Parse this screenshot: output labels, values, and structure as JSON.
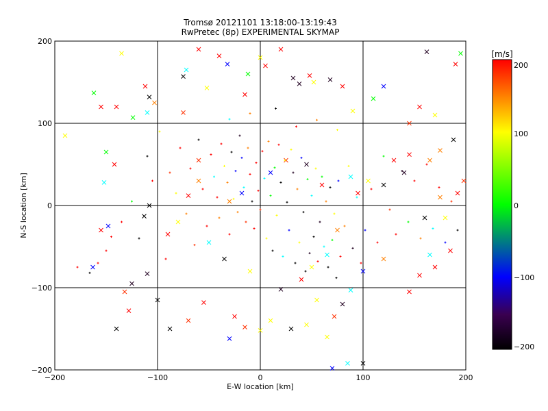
{
  "chart_data": {
    "type": "scatter",
    "title": "Tromsø 20121101 13:18:00-13:19:43",
    "subtitle": "RwPretec (8p) EXPERIMENTAL SKYMAP",
    "xlabel": "E-W location [km]",
    "ylabel": "N-S location [km]",
    "xlim": [
      -200,
      200
    ],
    "ylim": [
      -200,
      200
    ],
    "x_ticks": [
      "−200",
      "−100",
      "0",
      "100",
      "200"
    ],
    "y_ticks": [
      "200",
      "100",
      "0",
      "−100",
      "−200"
    ],
    "grid": true,
    "colorbar": {
      "label": "[m/s]",
      "range": [
        -200,
        200
      ],
      "ticks": [
        "200",
        "100",
        "0",
        "−100",
        "−200"
      ]
    },
    "series": [
      {
        "marker": "x",
        "points": [
          [
            -190,
            85
          ],
          [
            -162,
            137
          ],
          [
            -155,
            120
          ],
          [
            -140,
            120
          ],
          [
            -135,
            185
          ],
          [
            -124,
            107
          ],
          [
            -112,
            145
          ],
          [
            -108,
            132
          ],
          [
            -110,
            113
          ],
          [
            -103,
            125
          ],
          [
            -75,
            113
          ],
          [
            -75,
            157
          ],
          [
            -72,
            165
          ],
          [
            -60,
            190
          ],
          [
            -52,
            143
          ],
          [
            -40,
            182
          ],
          [
            -32,
            172
          ],
          [
            -15,
            135
          ],
          [
            -12,
            160
          ],
          [
            0,
            180
          ],
          [
            5,
            170
          ],
          [
            20,
            190
          ],
          [
            32,
            155
          ],
          [
            38,
            148
          ],
          [
            48,
            158
          ],
          [
            52,
            150
          ],
          [
            68,
            153
          ],
          [
            80,
            145
          ],
          [
            90,
            115
          ],
          [
            110,
            130
          ],
          [
            120,
            145
          ],
          [
            145,
            100
          ],
          [
            155,
            120
          ],
          [
            162,
            187
          ],
          [
            170,
            110
          ],
          [
            190,
            172
          ],
          [
            195,
            185
          ],
          [
            198,
            30
          ],
          [
            192,
            15
          ],
          [
            188,
            80
          ],
          [
            175,
            67
          ],
          [
            165,
            55
          ],
          [
            145,
            62
          ],
          [
            140,
            40
          ],
          [
            130,
            55
          ],
          [
            120,
            25
          ],
          [
            105,
            30
          ],
          [
            95,
            15
          ],
          [
            88,
            35
          ],
          [
            175,
            10
          ],
          [
            160,
            -15
          ],
          [
            165,
            -60
          ],
          [
            170,
            -75
          ],
          [
            185,
            -55
          ],
          [
            180,
            -15
          ],
          [
            155,
            -85
          ],
          [
            145,
            -105
          ],
          [
            120,
            -65
          ],
          [
            100,
            -80
          ],
          [
            88,
            -103
          ],
          [
            80,
            -120
          ],
          [
            72,
            -135
          ],
          [
            65,
            -160
          ],
          [
            55,
            -115
          ],
          [
            45,
            -145
          ],
          [
            30,
            -150
          ],
          [
            10,
            -140
          ],
          [
            0,
            -152
          ],
          [
            -15,
            -148
          ],
          [
            -25,
            -135
          ],
          [
            -30,
            -162
          ],
          [
            -55,
            -118
          ],
          [
            -70,
            -140
          ],
          [
            -88,
            -150
          ],
          [
            -100,
            -115
          ],
          [
            -110,
            -83
          ],
          [
            -125,
            -95
          ],
          [
            -140,
            -150
          ],
          [
            -148,
            -25
          ],
          [
            -152,
            28
          ],
          [
            -150,
            65
          ],
          [
            -128,
            -128
          ],
          [
            -60,
            55
          ],
          [
            -60,
            30
          ],
          [
            -70,
            12
          ],
          [
            -30,
            5
          ],
          [
            -18,
            15
          ],
          [
            10,
            40
          ],
          [
            25,
            55
          ],
          [
            45,
            50
          ],
          [
            60,
            25
          ],
          [
            75,
            -30
          ],
          [
            65,
            -60
          ],
          [
            50,
            -75
          ],
          [
            40,
            -90
          ],
          [
            20,
            -102
          ],
          [
            -10,
            -80
          ],
          [
            -35,
            -65
          ],
          [
            -50,
            -45
          ],
          [
            -80,
            -20
          ],
          [
            -90,
            -35
          ],
          [
            -108,
            0
          ],
          [
            -113,
            -13
          ],
          [
            -132,
            -105
          ],
          [
            -142,
            50
          ],
          [
            -155,
            -30
          ],
          [
            -163,
            -75
          ],
          [
            70,
            -198
          ],
          [
            85,
            -192
          ],
          [
            100,
            -192
          ]
        ]
      },
      {
        "marker": "+",
        "points": [
          [
            -178,
            -75
          ],
          [
            -166,
            -82
          ],
          [
            -158,
            -70
          ],
          [
            -150,
            -55
          ],
          [
            -145,
            -38
          ],
          [
            -135,
            -20
          ],
          [
            -125,
            5
          ],
          [
            -118,
            -40
          ],
          [
            -110,
            60
          ],
          [
            -105,
            30
          ],
          [
            -98,
            90
          ],
          [
            -92,
            -65
          ],
          [
            -88,
            40
          ],
          [
            -82,
            15
          ],
          [
            -78,
            70
          ],
          [
            -72,
            -10
          ],
          [
            -68,
            45
          ],
          [
            -64,
            -48
          ],
          [
            -60,
            80
          ],
          [
            -56,
            20
          ],
          [
            -52,
            -25
          ],
          [
            -48,
            62
          ],
          [
            -45,
            35
          ],
          [
            -42,
            10
          ],
          [
            -40,
            -15
          ],
          [
            -38,
            75
          ],
          [
            -35,
            48
          ],
          [
            -32,
            28
          ],
          [
            -30,
            -35
          ],
          [
            -28,
            65
          ],
          [
            -26,
            8
          ],
          [
            -24,
            42
          ],
          [
            -22,
            -8
          ],
          [
            -20,
            85
          ],
          [
            -18,
            58
          ],
          [
            -16,
            22
          ],
          [
            -14,
            -20
          ],
          [
            -12,
            70
          ],
          [
            -10,
            38
          ],
          [
            -8,
            5
          ],
          [
            -6,
            -28
          ],
          [
            -4,
            52
          ],
          [
            -2,
            18
          ],
          [
            0,
            -5
          ],
          [
            2,
            66
          ],
          [
            4,
            33
          ],
          [
            6,
            -40
          ],
          [
            8,
            78
          ],
          [
            10,
            12
          ],
          [
            12,
            -55
          ],
          [
            14,
            46
          ],
          [
            16,
            -12
          ],
          [
            18,
            74
          ],
          [
            20,
            28
          ],
          [
            22,
            -62
          ],
          [
            24,
            55
          ],
          [
            26,
            4
          ],
          [
            28,
            -30
          ],
          [
            30,
            68
          ],
          [
            32,
            40
          ],
          [
            34,
            -70
          ],
          [
            36,
            20
          ],
          [
            38,
            -45
          ],
          [
            40,
            58
          ],
          [
            42,
            -8
          ],
          [
            44,
            -80
          ],
          [
            46,
            32
          ],
          [
            48,
            -58
          ],
          [
            50,
            12
          ],
          [
            52,
            -38
          ],
          [
            54,
            45
          ],
          [
            56,
            -68
          ],
          [
            58,
            -20
          ],
          [
            60,
            35
          ],
          [
            62,
            -50
          ],
          [
            64,
            5
          ],
          [
            66,
            -75
          ],
          [
            68,
            22
          ],
          [
            70,
            -42
          ],
          [
            72,
            -10
          ],
          [
            74,
            -88
          ],
          [
            76,
            30
          ],
          [
            78,
            -62
          ],
          [
            82,
            -25
          ],
          [
            86,
            48
          ],
          [
            90,
            -52
          ],
          [
            94,
            10
          ],
          [
            98,
            -70
          ],
          [
            102,
            -30
          ],
          [
            108,
            20
          ],
          [
            114,
            -45
          ],
          [
            120,
            60
          ],
          [
            126,
            -5
          ],
          [
            132,
            -35
          ],
          [
            138,
            42
          ],
          [
            144,
            -20
          ],
          [
            150,
            30
          ],
          [
            156,
            -40
          ],
          [
            162,
            50
          ],
          [
            168,
            -28
          ],
          [
            174,
            22
          ],
          [
            180,
            -45
          ],
          [
            186,
            5
          ],
          [
            192,
            -30
          ],
          [
            -30,
            105
          ],
          [
            -10,
            112
          ],
          [
            15,
            118
          ],
          [
            35,
            96
          ],
          [
            55,
            104
          ],
          [
            75,
            92
          ]
        ]
      }
    ]
  }
}
